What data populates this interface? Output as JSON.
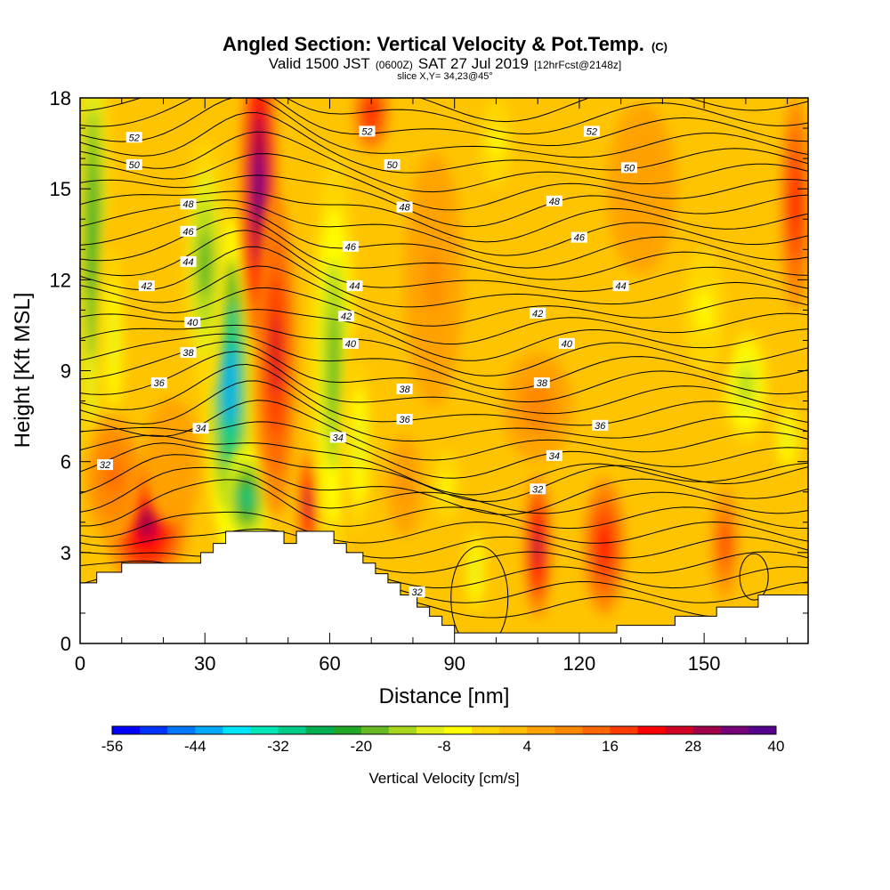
{
  "chart_data": {
    "type": "heatmap",
    "title": "Angled Section: Vertical Velocity & Pot.Temp.",
    "title_mark": "(C)",
    "subtitle_parts": [
      "Valid 1500 JST",
      "(0600Z)",
      "SAT 27 Jul 2019",
      "[12hrFcst@2148z]"
    ],
    "slice_label": "slice X,Y= 34,23@45°",
    "xlabel": "Distance [nm]",
    "ylabel": "Height [Kft MSL]",
    "xlim": [
      0,
      175
    ],
    "ylim": [
      0,
      18
    ],
    "x_ticks": [
      0,
      30,
      60,
      90,
      120,
      150
    ],
    "y_ticks": [
      0,
      3,
      6,
      9,
      12,
      15,
      18
    ],
    "colorbar": {
      "label": "Vertical Velocity [cm/s]",
      "range": [
        -56,
        40
      ],
      "tick_labels": [
        -56,
        -44,
        -32,
        -20,
        -8,
        4,
        16,
        28,
        40
      ],
      "colors": [
        "#0000ff",
        "#0033ff",
        "#0077ff",
        "#00aaff",
        "#00e5ff",
        "#00e6b8",
        "#00cc88",
        "#00b050",
        "#22a827",
        "#66bb22",
        "#a8d61c",
        "#e0ee1a",
        "#ffff00",
        "#ffd700",
        "#ffbf00",
        "#ffa200",
        "#ff8800",
        "#ff6600",
        "#ff3b00",
        "#ff0000",
        "#d10024",
        "#a0004a",
        "#780078",
        "#55008f"
      ]
    },
    "contour_levels": [
      32,
      34,
      36,
      38,
      40,
      42,
      44,
      46,
      48,
      50,
      52
    ],
    "contour_labels": [
      {
        "x": 6,
        "y": 5.9,
        "text": "32"
      },
      {
        "x": 110,
        "y": 5.1,
        "text": "32"
      },
      {
        "x": 81,
        "y": 1.7,
        "text": "32"
      },
      {
        "x": 29,
        "y": 7.1,
        "text": "34"
      },
      {
        "x": 62,
        "y": 6.8,
        "text": "34"
      },
      {
        "x": 114,
        "y": 6.2,
        "text": "34"
      },
      {
        "x": 78,
        "y": 7.4,
        "text": "36"
      },
      {
        "x": 125,
        "y": 7.2,
        "text": "36"
      },
      {
        "x": 19,
        "y": 8.6,
        "text": "36"
      },
      {
        "x": 26,
        "y": 9.6,
        "text": "38"
      },
      {
        "x": 78,
        "y": 8.4,
        "text": "38"
      },
      {
        "x": 111,
        "y": 8.6,
        "text": "38"
      },
      {
        "x": 27,
        "y": 10.6,
        "text": "40"
      },
      {
        "x": 65,
        "y": 9.9,
        "text": "40"
      },
      {
        "x": 117,
        "y": 9.9,
        "text": "40"
      },
      {
        "x": 16,
        "y": 11.8,
        "text": "42"
      },
      {
        "x": 64,
        "y": 10.8,
        "text": "42"
      },
      {
        "x": 110,
        "y": 10.9,
        "text": "42"
      },
      {
        "x": 26,
        "y": 12.6,
        "text": "44"
      },
      {
        "x": 66,
        "y": 11.8,
        "text": "44"
      },
      {
        "x": 130,
        "y": 11.8,
        "text": "44"
      },
      {
        "x": 26,
        "y": 13.6,
        "text": "46"
      },
      {
        "x": 65,
        "y": 13.1,
        "text": "46"
      },
      {
        "x": 120,
        "y": 13.4,
        "text": "46"
      },
      {
        "x": 26,
        "y": 14.5,
        "text": "48"
      },
      {
        "x": 78,
        "y": 14.4,
        "text": "48"
      },
      {
        "x": 114,
        "y": 14.6,
        "text": "48"
      },
      {
        "x": 13,
        "y": 15.8,
        "text": "50"
      },
      {
        "x": 75,
        "y": 15.8,
        "text": "50"
      },
      {
        "x": 132,
        "y": 15.7,
        "text": "50"
      },
      {
        "x": 13,
        "y": 16.7,
        "text": "52"
      },
      {
        "x": 69,
        "y": 16.9,
        "text": "52"
      },
      {
        "x": 123,
        "y": 16.9,
        "text": "52"
      }
    ],
    "terrain": [
      [
        0,
        2
      ],
      [
        4,
        2
      ],
      [
        4,
        2.35
      ],
      [
        10,
        2.35
      ],
      [
        10,
        2.65
      ],
      [
        29,
        2.65
      ],
      [
        29,
        3
      ],
      [
        32,
        3
      ],
      [
        32,
        3.3
      ],
      [
        35,
        3.3
      ],
      [
        35,
        3.7
      ],
      [
        49,
        3.7
      ],
      [
        49,
        3.3
      ],
      [
        52,
        3.3
      ],
      [
        52,
        3.7
      ],
      [
        61,
        3.7
      ],
      [
        61,
        3.3
      ],
      [
        64,
        3.3
      ],
      [
        64,
        3
      ],
      [
        68,
        3
      ],
      [
        68,
        2.65
      ],
      [
        71,
        2.65
      ],
      [
        71,
        2.3
      ],
      [
        74,
        2.3
      ],
      [
        74,
        2
      ],
      [
        77,
        2
      ],
      [
        77,
        1.6
      ],
      [
        81,
        1.6
      ],
      [
        81,
        1.2
      ],
      [
        84,
        1.2
      ],
      [
        84,
        0.9
      ],
      [
        87,
        0.9
      ],
      [
        87,
        0.6
      ],
      [
        90,
        0.6
      ],
      [
        90,
        0.35
      ],
      [
        129,
        0.35
      ],
      [
        129,
        0.6
      ],
      [
        143,
        0.6
      ],
      [
        143,
        0.9
      ],
      [
        153,
        0.9
      ],
      [
        153,
        1.2
      ],
      [
        163,
        1.2
      ],
      [
        163,
        1.6
      ],
      [
        175,
        1.6
      ]
    ],
    "velocity_features": [
      {
        "x": 3,
        "y": 13.5,
        "sx": 3,
        "sy": 6,
        "value": -24
      },
      {
        "x": 8,
        "y": 10,
        "sx": 2.5,
        "sy": 3,
        "value": -10
      },
      {
        "x": 16,
        "y": 4,
        "sx": 7,
        "sy": 1.6,
        "value": 28
      },
      {
        "x": 8,
        "y": 5.5,
        "sx": 5,
        "sy": 1.5,
        "value": 14
      },
      {
        "x": 22,
        "y": 6,
        "sx": 5,
        "sy": 1.5,
        "value": 6
      },
      {
        "x": 36,
        "y": 8.5,
        "sx": 4,
        "sy": 4,
        "value": -42
      },
      {
        "x": 30,
        "y": 12.5,
        "sx": 3.5,
        "sy": 3,
        "value": -22
      },
      {
        "x": 40,
        "y": 4.8,
        "sx": 4,
        "sy": 1.2,
        "value": -30
      },
      {
        "x": 43,
        "y": 15,
        "sx": 3,
        "sy": 3.6,
        "value": 38
      },
      {
        "x": 47,
        "y": 9.5,
        "sx": 3.5,
        "sy": 3.8,
        "value": 24
      },
      {
        "x": 55,
        "y": 4.6,
        "sx": 1.8,
        "sy": 1.3,
        "value": 30
      },
      {
        "x": 61,
        "y": 9.2,
        "sx": 4,
        "sy": 5,
        "value": -20
      },
      {
        "x": 67,
        "y": 6.5,
        "sx": 3,
        "sy": 2.8,
        "value": -10
      },
      {
        "x": 70,
        "y": 17.5,
        "sx": 3,
        "sy": 0.9,
        "value": 22
      },
      {
        "x": 110,
        "y": 3.2,
        "sx": 2.3,
        "sy": 1.7,
        "value": 28
      },
      {
        "x": 126,
        "y": 3.2,
        "sx": 3.5,
        "sy": 1.6,
        "value": 22
      },
      {
        "x": 155,
        "y": 3.3,
        "sx": 2.5,
        "sy": 1.4,
        "value": 18
      },
      {
        "x": 95,
        "y": 2.4,
        "sx": 2.5,
        "sy": 1.5,
        "value": -10
      },
      {
        "x": 88,
        "y": 5.2,
        "sx": 3.5,
        "sy": 1.2,
        "value": -6
      },
      {
        "x": 160,
        "y": 8.5,
        "sx": 4,
        "sy": 1.4,
        "value": -16
      },
      {
        "x": 170,
        "y": 6.8,
        "sx": 3,
        "sy": 1.2,
        "value": -10
      },
      {
        "x": 172,
        "y": 14.5,
        "sx": 2.5,
        "sy": 2.5,
        "value": 20
      },
      {
        "x": 110,
        "y": 7.8,
        "sx": 6,
        "sy": 1.3,
        "value": 10
      },
      {
        "x": 85,
        "y": 12,
        "sx": 5,
        "sy": 3,
        "value": 8
      },
      {
        "x": 135,
        "y": 15,
        "sx": 6,
        "sy": 2,
        "value": 6
      },
      {
        "x": 100,
        "y": 16.5,
        "sx": 4,
        "sy": 1.5,
        "value": -6
      },
      {
        "x": 150,
        "y": 11,
        "sx": 5,
        "sy": 2,
        "value": -6
      },
      {
        "x": 78,
        "y": 5.2,
        "sx": 3,
        "sy": 1.2,
        "value": 8
      }
    ]
  }
}
